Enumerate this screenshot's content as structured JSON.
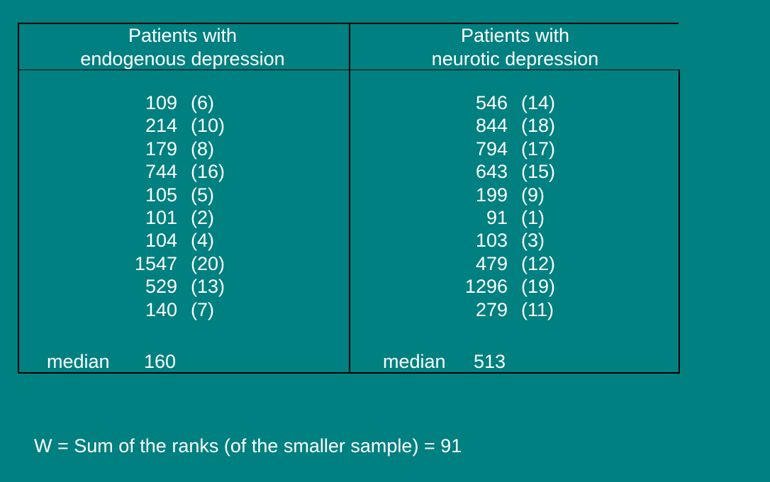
{
  "table": {
    "columns": [
      {
        "header_line1": "Patients with",
        "header_line2": "endogenous depression",
        "rows": [
          {
            "value": "109",
            "rank": "(6)"
          },
          {
            "value": "214",
            "rank": "(10)"
          },
          {
            "value": "179",
            "rank": "(8)"
          },
          {
            "value": "744",
            "rank": "(16)"
          },
          {
            "value": "105",
            "rank": "(5)"
          },
          {
            "value": "101",
            "rank": "(2)"
          },
          {
            "value": "104",
            "rank": "(4)"
          },
          {
            "value": "1547",
            "rank": "(20)"
          },
          {
            "value": "529",
            "rank": "(13)"
          },
          {
            "value": "140",
            "rank": "(7)"
          }
        ],
        "median_label": "median",
        "median_value": "160"
      },
      {
        "header_line1": "Patients with",
        "header_line2": "neurotic depression",
        "rows": [
          {
            "value": "546",
            "rank": "(14)"
          },
          {
            "value": "844",
            "rank": "(18)"
          },
          {
            "value": "794",
            "rank": "(17)"
          },
          {
            "value": "643",
            "rank": "(15)"
          },
          {
            "value": "199",
            "rank": "(9)"
          },
          {
            "value": "91",
            "rank": "(1)"
          },
          {
            "value": "103",
            "rank": "(3)"
          },
          {
            "value": "479",
            "rank": "(12)"
          },
          {
            "value": "1296",
            "rank": "(19)"
          },
          {
            "value": "279",
            "rank": "(11)"
          }
        ],
        "median_label": "median",
        "median_value": "513"
      }
    ]
  },
  "footer": {
    "text": "W = Sum of the ranks (of the smaller sample) = 91"
  },
  "colors": {
    "background": "#008080",
    "text": "#ffffff",
    "border": "#000000"
  }
}
